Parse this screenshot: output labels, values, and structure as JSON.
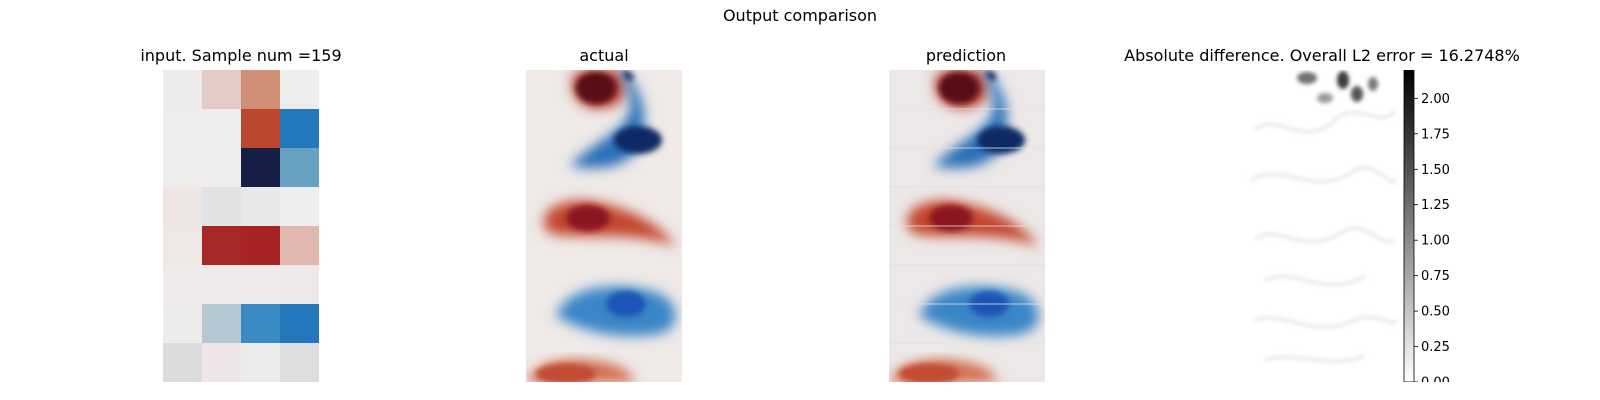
{
  "figure": {
    "title": "Output comparison"
  },
  "panels": [
    {
      "title": "input. Sample num =159"
    },
    {
      "title": "actual"
    },
    {
      "title": "prediction"
    },
    {
      "title": "Absolute difference. Overall L2 error = 16.2748%"
    }
  ],
  "chart_data": {
    "type": "heatmap",
    "input_grid": [
      [
        "#eeeceb",
        "#e2cac6",
        "#d18f78",
        "#efecec"
      ],
      [
        "#efecec",
        "#eeecec",
        "#bb472f",
        "#2478bc"
      ],
      [
        "#efecec",
        "#eeecec",
        "#171e45",
        "#66a1c1"
      ],
      [
        "#eee5e4",
        "#e0e2e4",
        "#e7e8ea",
        "#efecec"
      ],
      [
        "#efe7e6",
        "#a82828",
        "#a62424",
        "#e1b8af"
      ],
      [
        "#efebeb",
        "#eeeaea",
        "#eeeaea",
        "#eee9e9"
      ],
      [
        "#eeeceb",
        "#b6c9d2",
        "#3a8bc3",
        "#2477ba"
      ],
      [
        "#dcdcde",
        "#eee6e6",
        "#ebebeb",
        "#dcdddf"
      ]
    ],
    "colorbar": {
      "colormap": "gray_r",
      "range": [
        0,
        2.2
      ],
      "ticks": [
        "0.00",
        "0.25",
        "0.50",
        "0.75",
        "1.00",
        "1.25",
        "1.50",
        "1.75",
        "2.00"
      ]
    }
  }
}
